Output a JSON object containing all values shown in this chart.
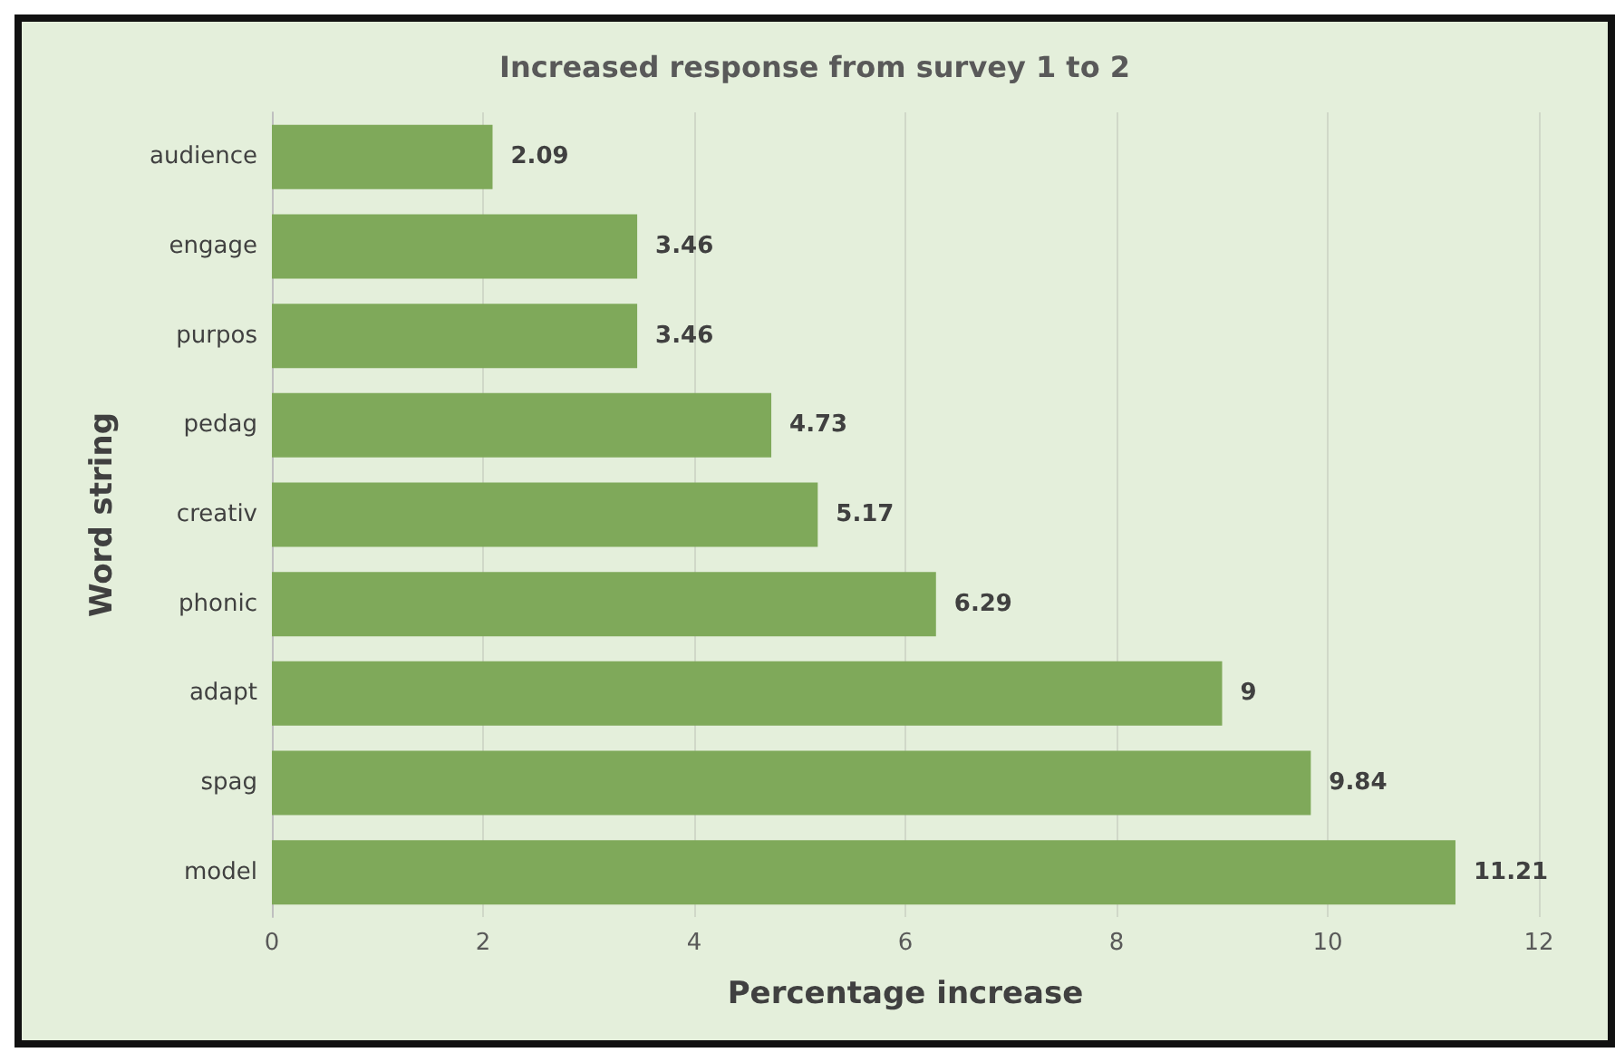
{
  "chart_data": {
    "type": "bar",
    "orientation": "horizontal",
    "title": "Increased response from survey 1 to 2",
    "xlabel": "Percentage increase",
    "ylabel": "Word string",
    "categories": [
      "audience",
      "engage",
      "purpos",
      "pedag",
      "creativ",
      "phonic",
      "adapt",
      "spag",
      "model"
    ],
    "values": [
      2.09,
      3.46,
      3.46,
      4.73,
      5.17,
      6.29,
      9,
      9.84,
      11.21
    ],
    "color": "#7fa95a",
    "xlim": [
      0,
      12
    ],
    "xticks": [
      0,
      2,
      4,
      6,
      8,
      10,
      12
    ],
    "grid": "x",
    "data_labels": true
  }
}
